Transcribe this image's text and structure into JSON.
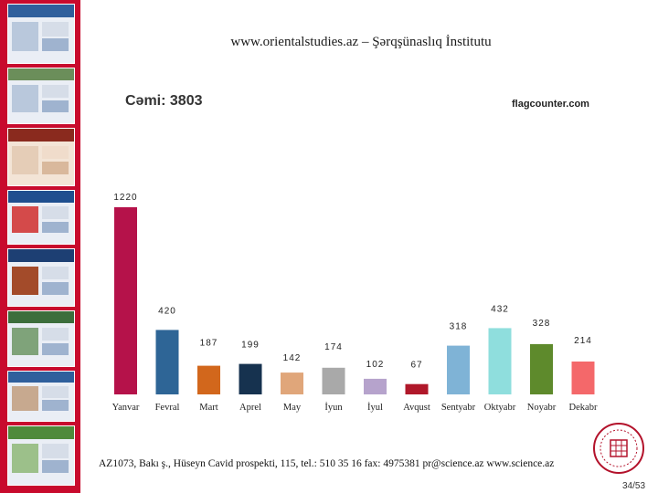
{
  "slide": {
    "title": "www.orientalstudies.az – Şərqşünaslıq İnstitutu",
    "total": "Cəmi: 3803",
    "source": "flagcounter.com",
    "footer": "AZ1073, Bakı ş., Hüseyn Cavid prospekti, 115, tel.: 510 35 16  fax: 4975381  pr@science.az  www.science.az",
    "page": "34/53"
  },
  "chart_data": {
    "type": "bar",
    "title": "",
    "xlabel": "",
    "ylabel": "",
    "ylim": [
      0,
      1220
    ],
    "categories": [
      "Yanvar",
      "Fevral",
      "Mart",
      "Aprel",
      "May",
      "İyun",
      "İyul",
      "Avqust",
      "Sentyabr",
      "Oktyabr",
      "Noyabr",
      "Dekabr"
    ],
    "values": [
      1220,
      420,
      187,
      199,
      142,
      174,
      102,
      67,
      318,
      432,
      328,
      214
    ],
    "colors": [
      "#b5124a",
      "#2e6596",
      "#d2671c",
      "#16324f",
      "#e0a67a",
      "#a9a9a9",
      "#b6a3cc",
      "#b0182a",
      "#7fb3d6",
      "#8fdedd",
      "#5e8a2c",
      "#f4686a"
    ]
  }
}
